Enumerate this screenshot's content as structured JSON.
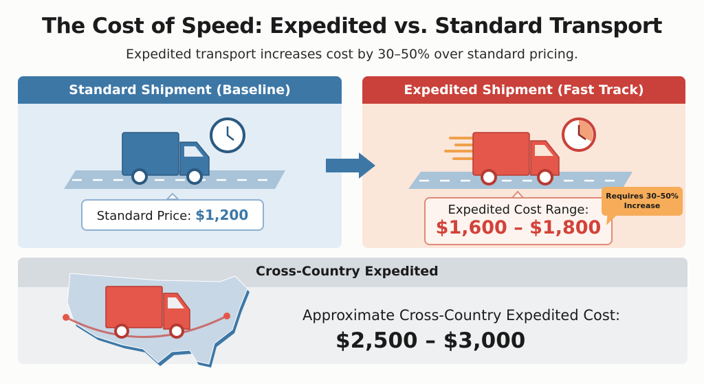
{
  "header": {
    "title": "The Cost of Speed: Expedited vs. Standard Transport",
    "subtitle": "Expedited transport increases cost by 30–50% over standard pricing."
  },
  "standard": {
    "title": "Standard Shipment (Baseline)",
    "price_label": "Standard Price:",
    "price_value": "$1,200",
    "color": "#3d77a6"
  },
  "expedited": {
    "title": "Expedited Shipment (Fast Track)",
    "range_label": "Expedited Cost Range:",
    "range_value": "$1,600 – $1,800",
    "callout": "Requires 30–50% Increase",
    "color": "#c9413a"
  },
  "cross_country": {
    "title": "Cross-Country Expedited",
    "cost_label": "Approximate Cross-Country Expedited Cost:",
    "cost_value": "$2,500 – $3,000"
  },
  "icons": [
    "truck-icon",
    "clock-icon",
    "arrow-right-icon",
    "speed-lines-icon",
    "us-map-icon"
  ]
}
